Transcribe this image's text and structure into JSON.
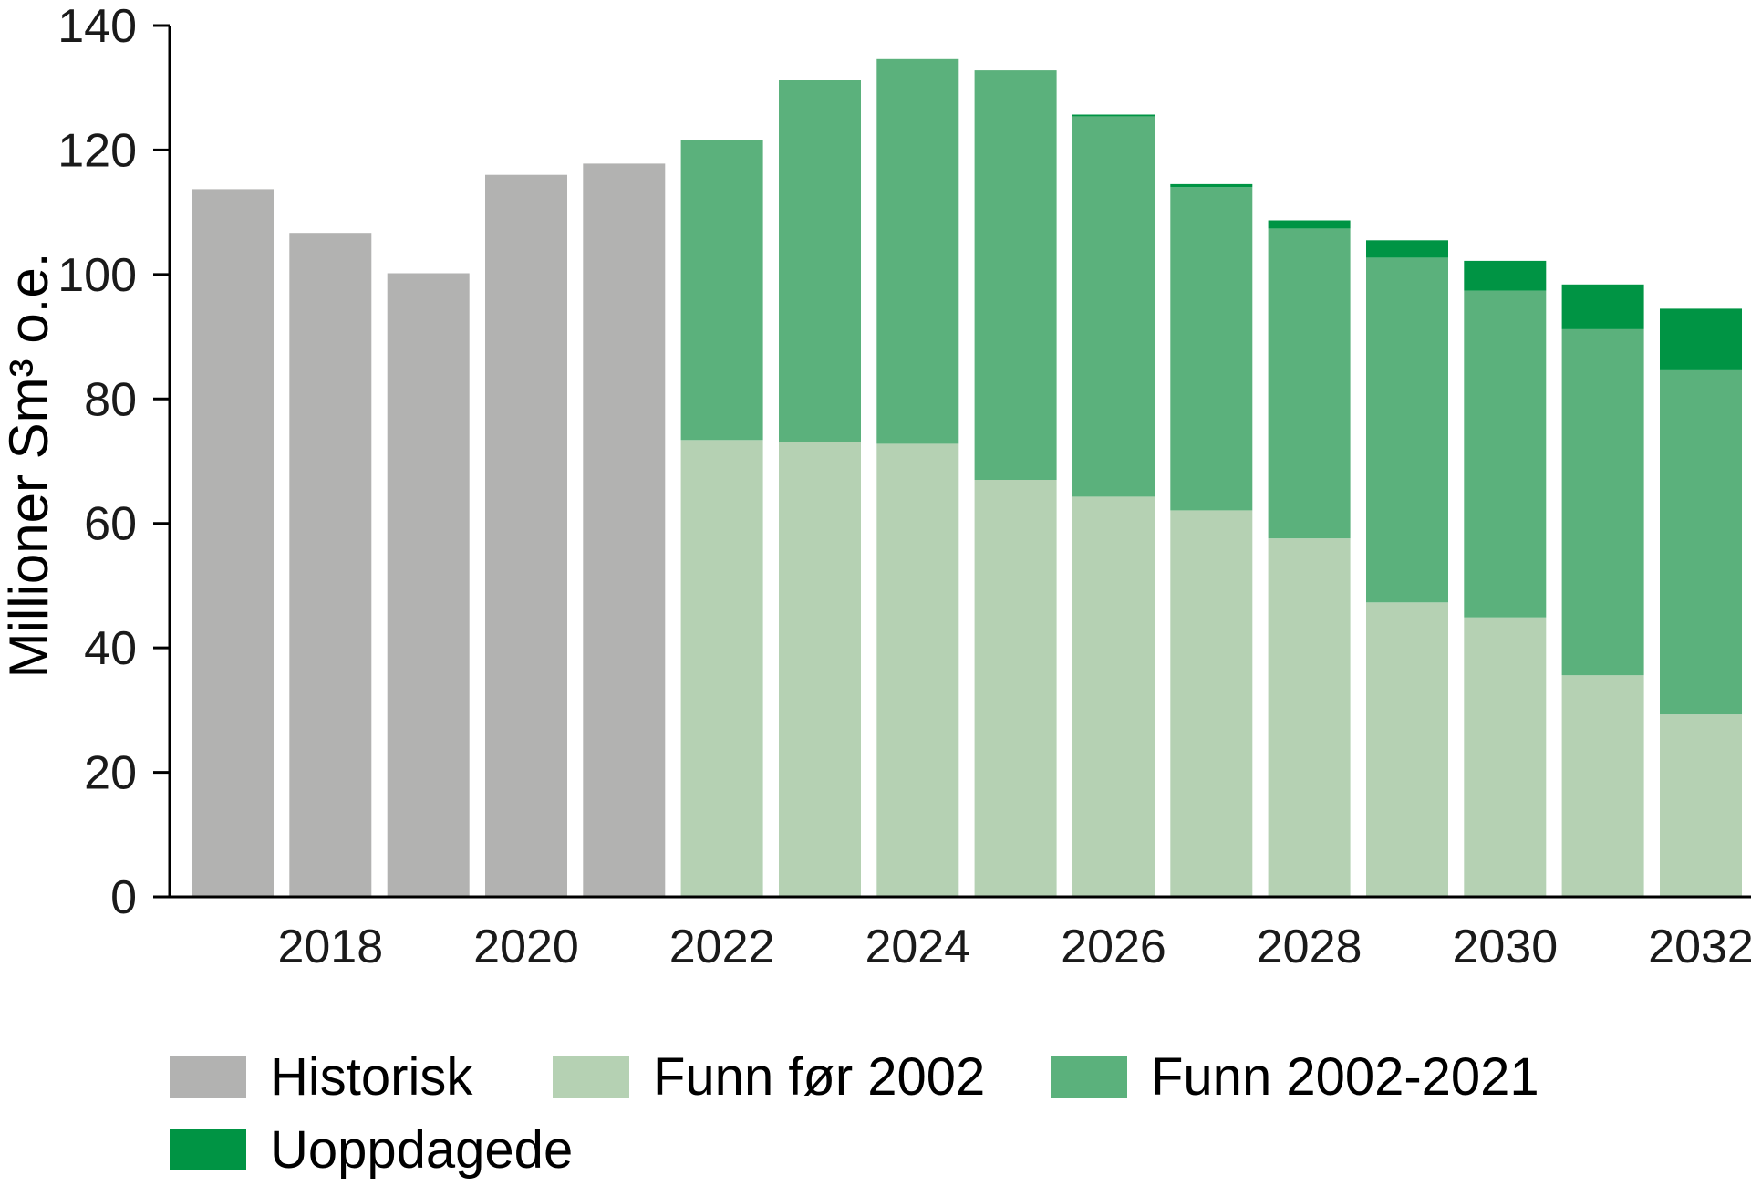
{
  "chart_data": {
    "type": "bar",
    "stacked": true,
    "xlabel": "",
    "ylabel": "Millioner Sm³ o.e.",
    "ylim": [
      0,
      140
    ],
    "yticks": [
      "0",
      "20",
      "40",
      "60",
      "80",
      "100",
      "120",
      "140"
    ],
    "categories": [
      "2017",
      "2018",
      "2019",
      "2020",
      "2021",
      "2022",
      "2023",
      "2024",
      "2025",
      "2026",
      "2027",
      "2028",
      "2029",
      "2030",
      "2031",
      "2032"
    ],
    "xtick_labels": [
      "2018",
      "2020",
      "2022",
      "2024",
      "2026",
      "2028",
      "2030",
      "2032"
    ],
    "grid": false,
    "legend_position": "bottom",
    "series": [
      {
        "name": "Historisk",
        "color": "#b2b2b1",
        "values": [
          113.7,
          106.7,
          100.2,
          116.0,
          117.8,
          0,
          0,
          0,
          0,
          0,
          0,
          0,
          0,
          0,
          0,
          0
        ]
      },
      {
        "name": "Funn før 2002",
        "color": "#b5d1b3",
        "values": [
          0,
          0,
          0,
          0,
          0,
          73.4,
          73.1,
          72.8,
          67.0,
          64.3,
          62.1,
          57.6,
          47.3,
          44.9,
          35.6,
          29.3
        ]
      },
      {
        "name": "Funn 2002-2021",
        "color": "#5bb17c",
        "values": [
          0,
          0,
          0,
          0,
          0,
          48.2,
          58.1,
          61.8,
          65.8,
          61.1,
          51.9,
          49.8,
          55.4,
          52.5,
          55.6,
          55.3
        ]
      },
      {
        "name": "Uoppdagede",
        "color": "#009444",
        "values": [
          0,
          0,
          0,
          0,
          0,
          0,
          0,
          0,
          0,
          0.3,
          0.5,
          1.3,
          2.8,
          4.8,
          7.2,
          9.9
        ]
      }
    ]
  }
}
